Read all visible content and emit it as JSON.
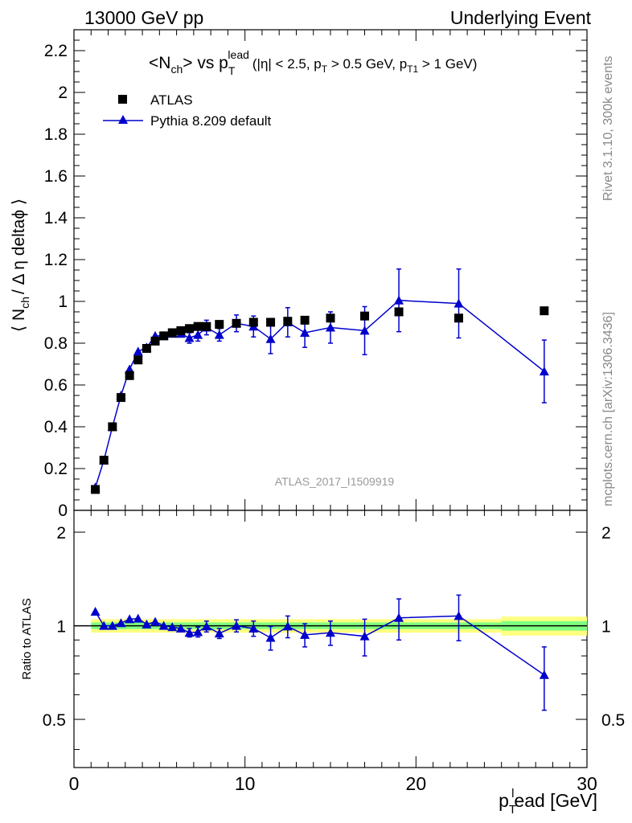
{
  "header": {
    "left": "13000 GeV pp",
    "right": "Underlying Event"
  },
  "plot_title": {
    "main": "<N",
    "main_sub": "ch",
    "main_rest": "> vs p",
    "main_sup": "lead",
    "main_sub2": "T",
    "cuts": "(|η| < 2.5, p",
    "cuts_sub": "T",
    "cuts_mid": " > 0.5 GeV, p",
    "cuts_sub2": "T1",
    "cuts_end": " > 1 GeV)"
  },
  "side_notes": {
    "rivet": "Rivet 3.1.10,  300k events",
    "mcplots": "mcplots.cern.ch [arXiv:1306.3436]"
  },
  "watermark": "ATLAS_2017_I1509919",
  "axes": {
    "ylabel_top": "⟨ N",
    "ylabel_top_sub": "ch",
    "ylabel_top_rest": "/ Δ η deltaϕ ⟩",
    "ylabel_bottom": "Ratio to ATLAS",
    "xlabel": "p",
    "xlabel_sub": "T",
    "xlabel_sup": "l",
    "xlabel_rest": "ead [GeV]"
  },
  "legend": {
    "data_label": "ATLAS",
    "mc_label": "Pythia 8.209 default"
  },
  "colors": {
    "data": "#000000",
    "mc": "#0000cc",
    "band_inner": "#80ff80",
    "band_outer": "#ffff80"
  },
  "chart_data": {
    "type": "scatter",
    "top_panel": {
      "xlim": [
        0,
        30
      ],
      "ylim": [
        0,
        2.3
      ],
      "yticks": [
        0.2,
        0.4,
        0.6,
        0.8,
        1,
        1.2,
        1.4,
        1.6,
        1.8,
        2,
        2.2
      ],
      "ytick_labels": [
        "0.2",
        "0.4",
        "0.6",
        "0.8",
        "1",
        "1.2",
        "1.4",
        "1.6",
        "1.8",
        "2",
        "2.2"
      ],
      "series": [
        {
          "name": "ATLAS",
          "marker": "square",
          "x": [
            1.25,
            1.75,
            2.25,
            2.75,
            3.25,
            3.75,
            4.25,
            4.75,
            5.25,
            5.75,
            6.25,
            6.75,
            7.25,
            7.75,
            8.5,
            9.5,
            10.5,
            11.5,
            12.5,
            13.5,
            15,
            17,
            19,
            22.5,
            27.5
          ],
          "y": [
            0.1,
            0.24,
            0.4,
            0.54,
            0.645,
            0.72,
            0.775,
            0.81,
            0.835,
            0.85,
            0.86,
            0.87,
            0.88,
            0.88,
            0.89,
            0.895,
            0.9,
            0.9,
            0.905,
            0.91,
            0.92,
            0.93,
            0.95,
            0.92,
            0.955
          ]
        },
        {
          "name": "Pythia 8.209 default",
          "marker": "triangle",
          "x": [
            1.25,
            1.75,
            2.25,
            2.75,
            3.25,
            3.75,
            4.25,
            4.75,
            5.25,
            5.75,
            6.25,
            6.75,
            7.25,
            7.75,
            8.5,
            9.5,
            10.5,
            11.5,
            12.5,
            13.5,
            15,
            17,
            19,
            22.5,
            27.5
          ],
          "y": [
            0.11,
            0.24,
            0.4,
            0.55,
            0.675,
            0.76,
            0.78,
            0.835,
            0.835,
            0.845,
            0.845,
            0.825,
            0.84,
            0.875,
            0.84,
            0.895,
            0.88,
            0.82,
            0.9,
            0.85,
            0.875,
            0.86,
            1.005,
            0.99,
            0.665
          ],
          "err": [
            0,
            0,
            0,
            0,
            0,
            0,
            0,
            0,
            0,
            0,
            0,
            0.025,
            0.03,
            0.035,
            0.03,
            0.04,
            0.05,
            0.07,
            0.07,
            0.07,
            0.075,
            0.115,
            0.15,
            0.165,
            0.15
          ]
        }
      ]
    },
    "ratio_panel": {
      "xlim": [
        0,
        30
      ],
      "ylim": [
        0.35,
        2.35
      ],
      "yticks": [
        0.5,
        1,
        2
      ],
      "ytick_labels": [
        "0.5",
        "1",
        "2"
      ],
      "xticks": [
        0,
        10,
        20,
        30
      ],
      "xtick_labels": [
        "0",
        "10",
        "20",
        "30"
      ],
      "ratio": [
        1.11,
        1.0,
        1.0,
        1.02,
        1.05,
        1.055,
        1.01,
        1.03,
        1.0,
        0.99,
        0.98,
        0.95,
        0.955,
        0.995,
        0.945,
        1.0,
        0.98,
        0.915,
        0.995,
        0.935,
        0.95,
        0.925,
        1.06,
        1.075,
        0.695
      ],
      "ratio_err": [
        0,
        0,
        0,
        0,
        0,
        0,
        0,
        0,
        0,
        0,
        0,
        0.03,
        0.035,
        0.04,
        0.035,
        0.045,
        0.055,
        0.08,
        0.08,
        0.08,
        0.085,
        0.125,
        0.16,
        0.18,
        0.16
      ],
      "bands": [
        {
          "x0": 1.0,
          "x1": 25.0,
          "inner": 0.025,
          "outer": 0.05
        },
        {
          "x0": 25.0,
          "x1": 30.0,
          "inner": 0.035,
          "outer": 0.07
        }
      ]
    }
  }
}
